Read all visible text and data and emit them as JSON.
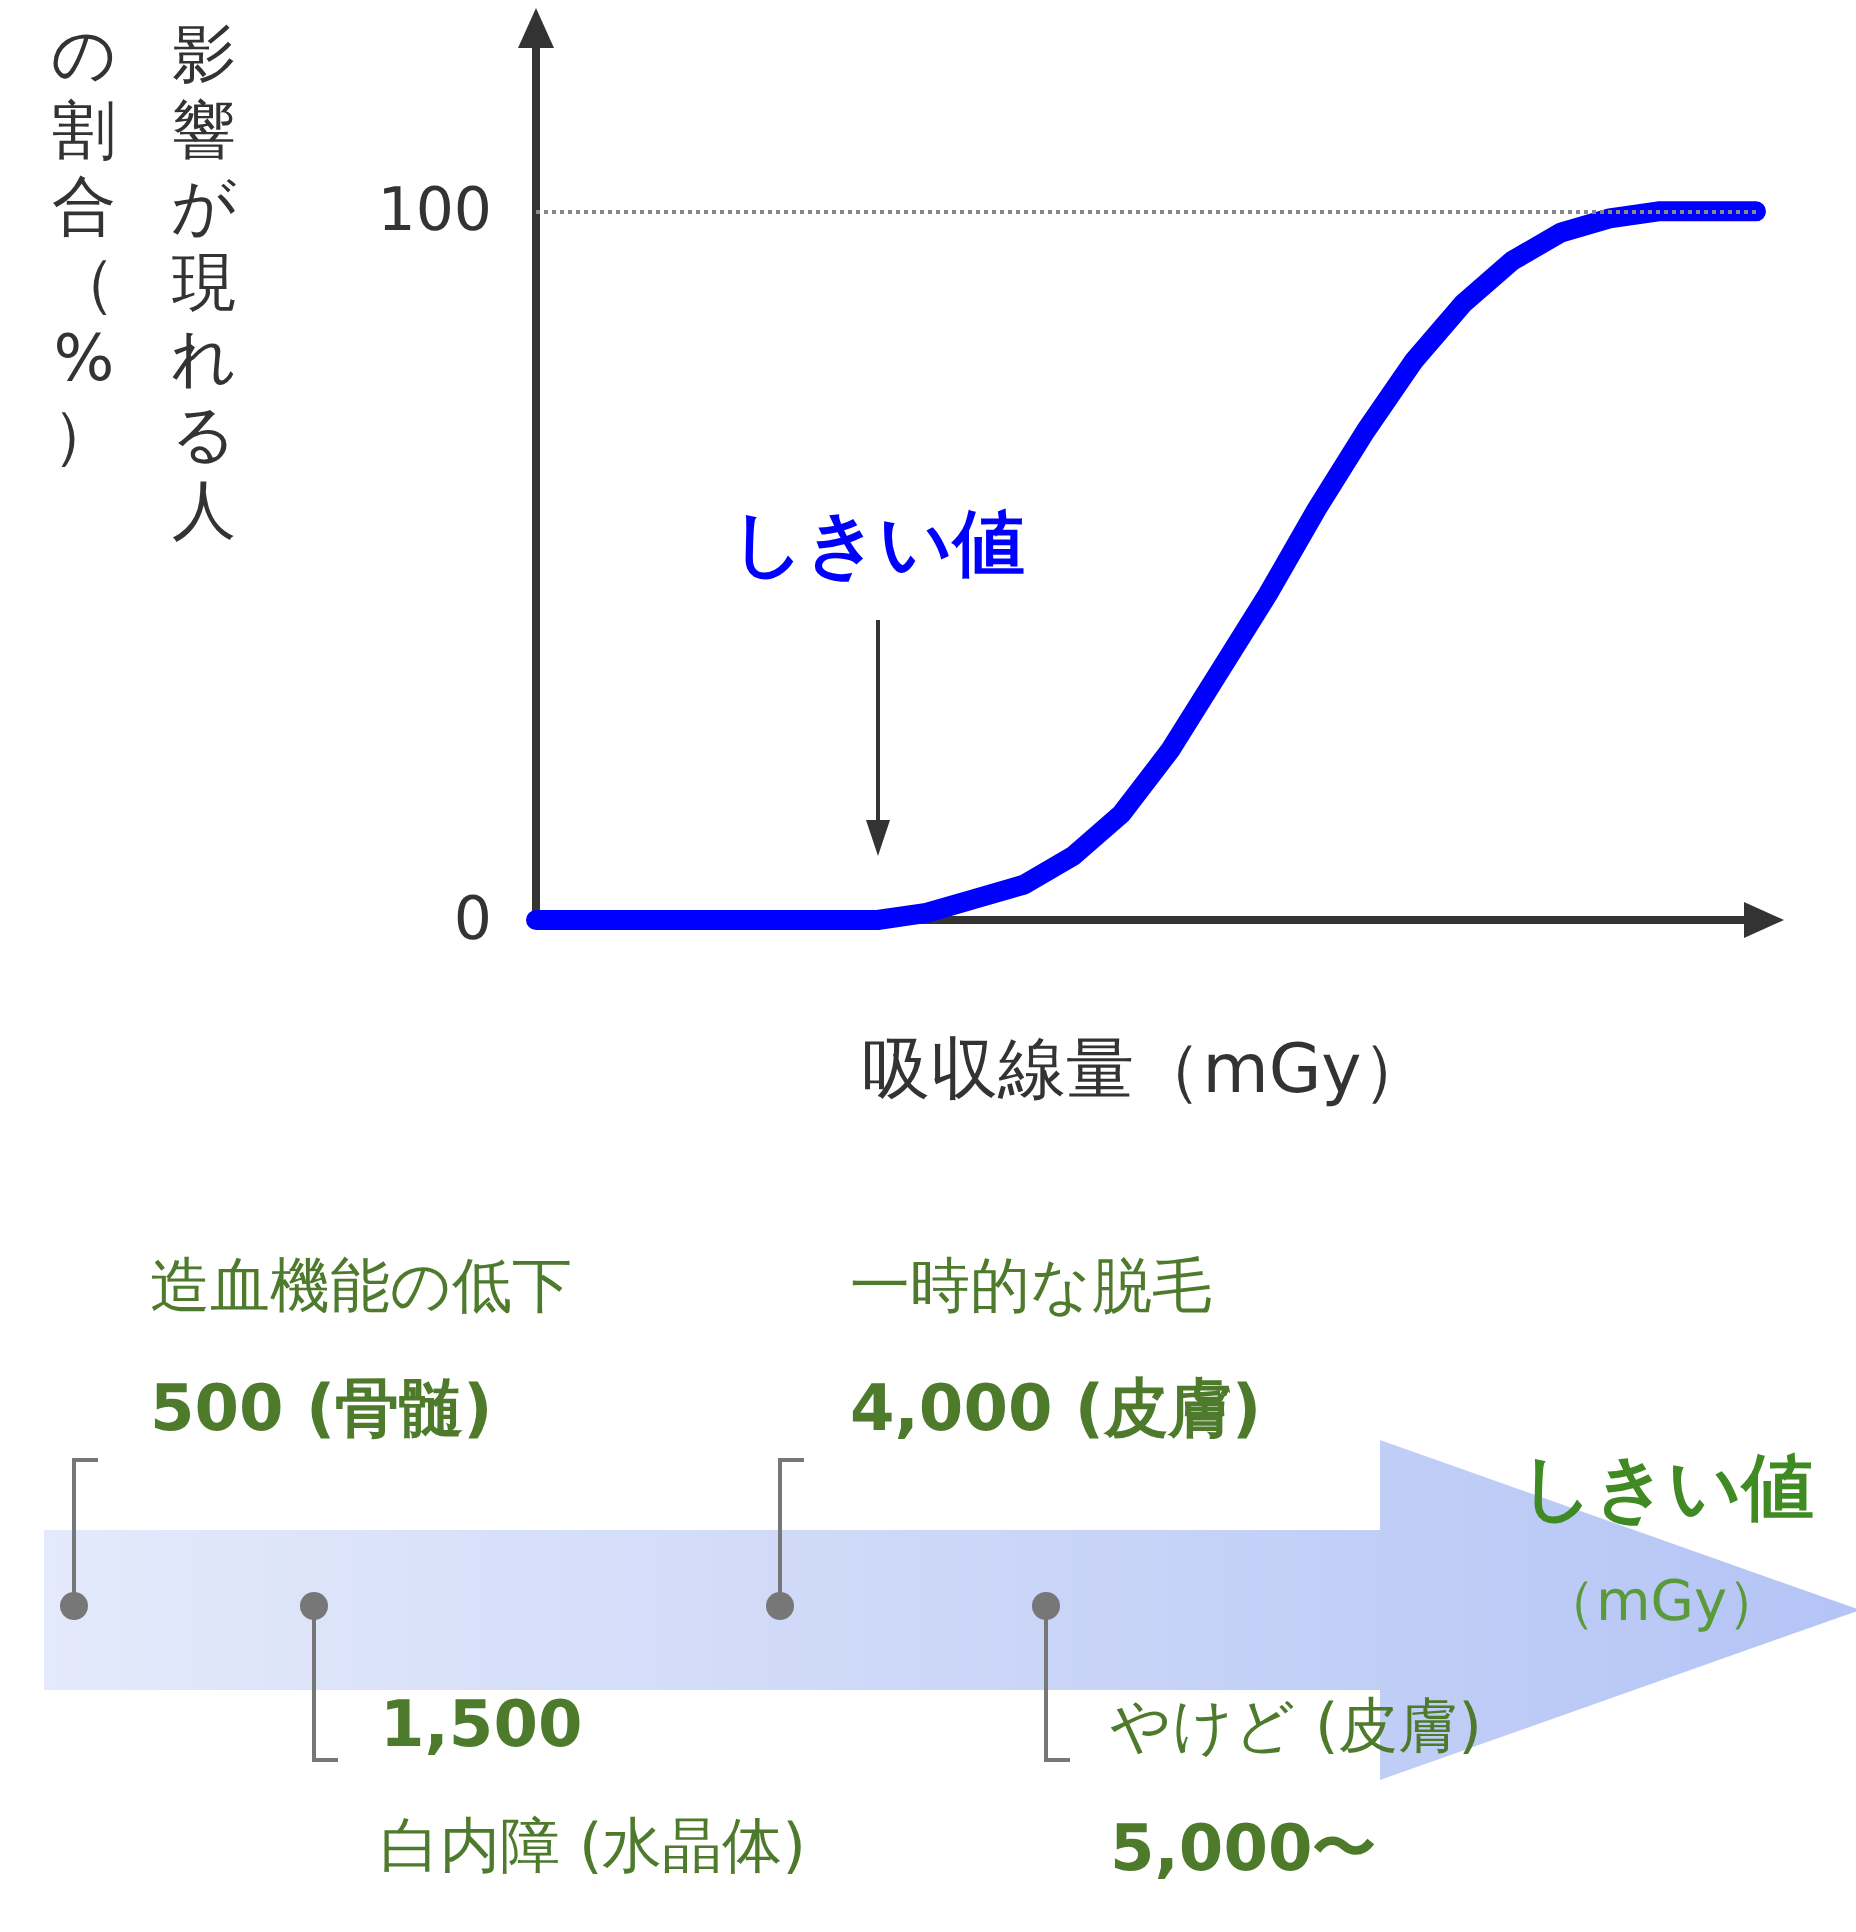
{
  "chart_data": [
    {
      "type": "line",
      "xlabel": "吸収線量（mGy）",
      "ylabel": "影響が現れる人の割合（%）",
      "categories": [
        null,
        null,
        null,
        null,
        null,
        null,
        null,
        null,
        null,
        null,
        null,
        null,
        null,
        null,
        null,
        null,
        null,
        null,
        null,
        null,
        null,
        null,
        null,
        null,
        null,
        null
      ],
      "series": [
        {
          "color": "#0000ff",
          "values": [
            0,
            0,
            0,
            0,
            0,
            0,
            0,
            0,
            1,
            3,
            5,
            9,
            15,
            24,
            35,
            46,
            58,
            69,
            79,
            87,
            93,
            97,
            99,
            100,
            100,
            100
          ]
        }
      ],
      "ylim": [
        0,
        127
      ],
      "yticks": [
        0,
        100
      ],
      "grid": false,
      "line_style": "solid",
      "ref_lines": [
        {
          "axis": "y",
          "value": 100,
          "label": null,
          "color": "#888888",
          "line_style": "dotted"
        }
      ],
      "annotations": [
        "しきい値"
      ]
    },
    {
      "type": "other",
      "title": "しきい値",
      "subtitle": "（mGy）",
      "annotations": [
        "造血機能の低下",
        "500 (骨髄)",
        "一時的な脱毛",
        "4,000 (皮膚)",
        "1,500",
        "白内障 (水晶体)",
        "やけど (皮膚)",
        "5,000〜"
      ]
    }
  ]
}
